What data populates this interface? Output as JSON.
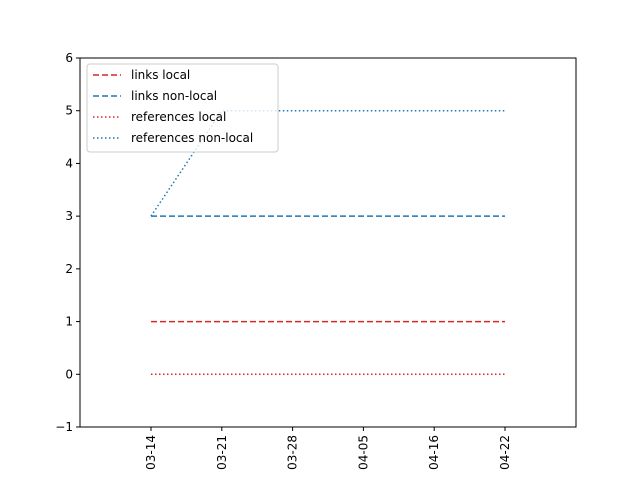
{
  "chart_data": {
    "type": "line",
    "title": "",
    "xlabel": "",
    "ylabel": "",
    "x": [
      "03-14",
      "03-21",
      "03-28",
      "04-05",
      "04-16",
      "04-22"
    ],
    "xticks": [
      "03-14",
      "03-21",
      "03-28",
      "04-05",
      "04-16",
      "04-22"
    ],
    "yticks": [
      "−1",
      "0",
      "1",
      "2",
      "3",
      "4",
      "5",
      "6"
    ],
    "ylim": [
      -1,
      6
    ],
    "grid": false,
    "legend_position": "top-left",
    "series": [
      {
        "name": "links local",
        "values": [
          1,
          1,
          1,
          1,
          1,
          1
        ],
        "color": "#d62728",
        "style": "dashed"
      },
      {
        "name": "links non-local",
        "values": [
          3,
          3,
          3,
          3,
          3,
          3
        ],
        "color": "#1f77b4",
        "style": "dashed"
      },
      {
        "name": "references local",
        "values": [
          0,
          0,
          0,
          0,
          0,
          0
        ],
        "color": "#d62728",
        "style": "dotted"
      },
      {
        "name": "references non-local",
        "values": [
          3,
          5,
          5,
          5,
          5,
          5
        ],
        "color": "#1f77b4",
        "style": "dotted"
      }
    ]
  }
}
